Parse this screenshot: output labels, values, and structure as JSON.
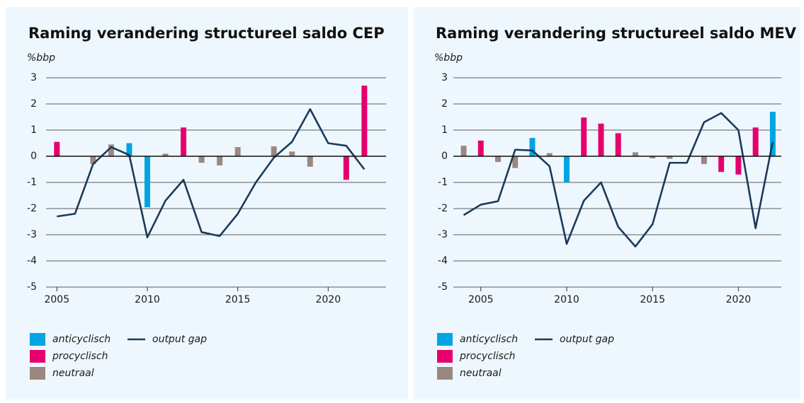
{
  "chart_data": [
    {
      "type": "bar-line",
      "title": "Raming verandering structureel saldo CEP",
      "y_label": "%bbp",
      "x": [
        2005,
        2006,
        2007,
        2008,
        2009,
        2010,
        2011,
        2012,
        2013,
        2014,
        2015,
        2016,
        2017,
        2018,
        2019,
        2020,
        2021,
        2022
      ],
      "xlim": [
        2004.4,
        2023.2
      ],
      "xticks": [
        2005,
        2010,
        2015,
        2020
      ],
      "ylim": [
        -5,
        3
      ],
      "yticks": [
        -5,
        -4,
        -3,
        -2,
        -1,
        0,
        1,
        2,
        3
      ],
      "grid": true,
      "series": [
        {
          "name": "anticyclisch",
          "color": "#00a5e3",
          "values": [
            null,
            null,
            null,
            null,
            0.5,
            -1.95,
            null,
            null,
            null,
            null,
            null,
            null,
            null,
            null,
            null,
            null,
            null,
            null
          ]
        },
        {
          "name": "procyclisch",
          "color": "#e6006e",
          "values": [
            0.55,
            null,
            null,
            null,
            null,
            null,
            null,
            1.1,
            null,
            null,
            null,
            null,
            null,
            null,
            null,
            null,
            -0.9,
            2.7
          ]
        },
        {
          "name": "neutraal",
          "color": "#9b8781",
          "values": [
            null,
            null,
            -0.3,
            0.45,
            null,
            null,
            0.1,
            null,
            -0.25,
            -0.35,
            0.35,
            null,
            0.38,
            0.18,
            -0.4,
            null,
            null,
            null
          ]
        },
        {
          "name": "output gap",
          "type": "line",
          "color": "#1b3a5c",
          "values": [
            -2.3,
            -2.2,
            -0.3,
            0.35,
            0.05,
            -3.1,
            -1.7,
            -0.9,
            -2.9,
            -3.05,
            -2.2,
            -1.0,
            -0.05,
            0.55,
            1.8,
            0.5,
            0.4,
            -0.5
          ]
        }
      ]
    },
    {
      "type": "bar-line",
      "title": "Raming verandering structureel saldo MEV",
      "y_label": "%bbp",
      "x": [
        2004,
        2005,
        2006,
        2007,
        2008,
        2009,
        2010,
        2011,
        2012,
        2013,
        2014,
        2015,
        2016,
        2017,
        2018,
        2019,
        2020,
        2021,
        2022
      ],
      "xlim": [
        2003.4,
        2022.5
      ],
      "xticks": [
        2005,
        2010,
        2015,
        2020
      ],
      "ylim": [
        -5,
        3
      ],
      "yticks": [
        -5,
        -4,
        -3,
        -2,
        -1,
        0,
        1,
        2,
        3
      ],
      "grid": true,
      "series": [
        {
          "name": "anticyclisch",
          "color": "#00a5e3",
          "values": [
            null,
            null,
            null,
            null,
            0.7,
            null,
            -1.0,
            null,
            null,
            null,
            null,
            null,
            null,
            null,
            null,
            null,
            null,
            null,
            1.7
          ]
        },
        {
          "name": "procyclisch",
          "color": "#e6006e",
          "values": [
            null,
            0.6,
            null,
            null,
            null,
            null,
            null,
            1.48,
            1.25,
            0.88,
            null,
            null,
            null,
            null,
            null,
            -0.6,
            -0.7,
            1.1,
            null
          ]
        },
        {
          "name": "neutraal",
          "color": "#9b8781",
          "values": [
            0.4,
            null,
            -0.22,
            -0.45,
            null,
            0.12,
            null,
            null,
            null,
            null,
            0.15,
            -0.08,
            -0.1,
            null,
            -0.3,
            null,
            null,
            null,
            null
          ]
        },
        {
          "name": "output gap",
          "type": "line",
          "color": "#1b3a5c",
          "values": [
            -2.25,
            -1.85,
            -1.72,
            0.25,
            0.22,
            -0.38,
            -3.35,
            -1.7,
            -1.0,
            -2.7,
            -3.45,
            -2.6,
            -0.25,
            -0.25,
            1.3,
            1.65,
            1.0,
            -2.75,
            0.55
          ]
        }
      ]
    }
  ]
}
